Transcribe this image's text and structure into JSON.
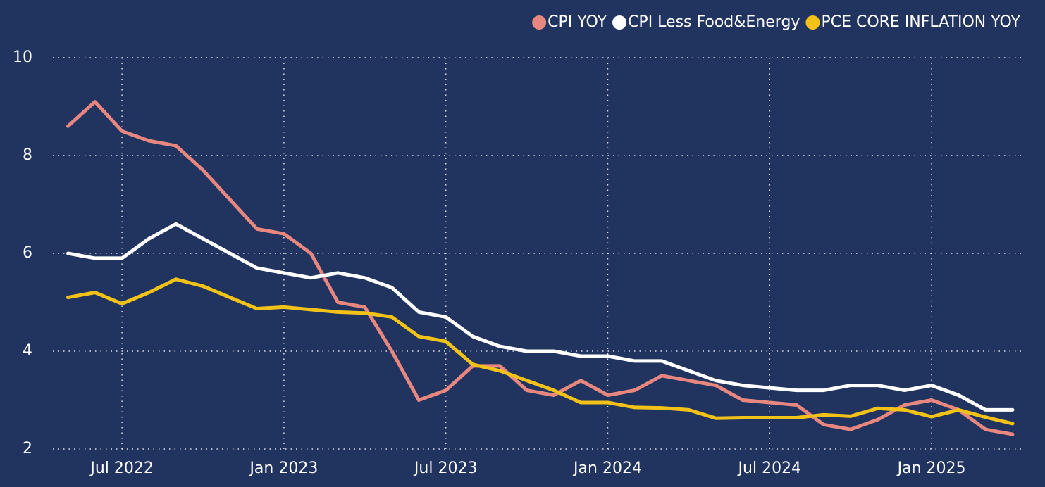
{
  "chart_data": {
    "type": "line",
    "x": [
      "2022-05",
      "2022-06",
      "2022-07",
      "2022-08",
      "2022-09",
      "2022-10",
      "2022-11",
      "2022-12",
      "2023-01",
      "2023-02",
      "2023-03",
      "2023-04",
      "2023-05",
      "2023-06",
      "2023-07",
      "2023-08",
      "2023-09",
      "2023-10",
      "2023-11",
      "2023-12",
      "2024-01",
      "2024-02",
      "2024-03",
      "2024-04",
      "2024-05",
      "2024-06",
      "2024-07",
      "2024-08",
      "2024-09",
      "2024-10",
      "2024-11",
      "2024-12",
      "2025-01",
      "2025-02",
      "2025-03",
      "2025-04"
    ],
    "series": [
      {
        "name": "CPI YOY",
        "color": "#e8877f",
        "values": [
          8.6,
          9.1,
          8.5,
          8.3,
          8.2,
          7.7,
          7.1,
          6.5,
          6.4,
          6.0,
          5.0,
          4.9,
          4.0,
          3.0,
          3.2,
          3.7,
          3.7,
          3.2,
          3.1,
          3.4,
          3.1,
          3.2,
          3.5,
          3.4,
          3.3,
          3.0,
          2.95,
          2.9,
          2.5,
          2.4,
          2.6,
          2.9,
          3.0,
          2.8,
          2.4,
          2.3
        ]
      },
      {
        "name": "CPI Less Food&Energy",
        "color": "#ffffff",
        "values": [
          6.0,
          5.9,
          5.9,
          6.3,
          6.6,
          6.3,
          6.0,
          5.7,
          5.6,
          5.5,
          5.6,
          5.5,
          5.3,
          4.8,
          4.7,
          4.3,
          4.1,
          4.0,
          4.0,
          3.9,
          3.9,
          3.8,
          3.8,
          3.6,
          3.4,
          3.3,
          3.25,
          3.2,
          3.2,
          3.3,
          3.3,
          3.2,
          3.3,
          3.1,
          2.8,
          2.8
        ]
      },
      {
        "name": "PCE CORE INFLATION YOY",
        "color": "#f2c219",
        "values": [
          5.1,
          5.2,
          4.97,
          5.2,
          5.47,
          5.33,
          5.1,
          4.87,
          4.9,
          4.85,
          4.8,
          4.78,
          4.7,
          4.3,
          4.2,
          3.73,
          3.6,
          3.4,
          3.2,
          2.95,
          2.95,
          2.85,
          2.84,
          2.8,
          2.63,
          2.64,
          2.64,
          2.64,
          2.7,
          2.67,
          2.83,
          2.8,
          2.66,
          2.8,
          2.65,
          2.52
        ]
      }
    ],
    "xticks": [
      {
        "value": "2022-07",
        "label": "Jul 2022"
      },
      {
        "value": "2023-01",
        "label": "Jan 2023"
      },
      {
        "value": "2023-07",
        "label": "Jul 2023"
      },
      {
        "value": "2024-01",
        "label": "Jan 2024"
      },
      {
        "value": "2024-07",
        "label": "Jul 2024"
      },
      {
        "value": "2025-01",
        "label": "Jan 2025"
      }
    ],
    "ylim": [
      2,
      10
    ],
    "yticks": [
      2,
      4,
      6,
      8,
      10
    ],
    "grid": true,
    "legend": "top-right"
  }
}
